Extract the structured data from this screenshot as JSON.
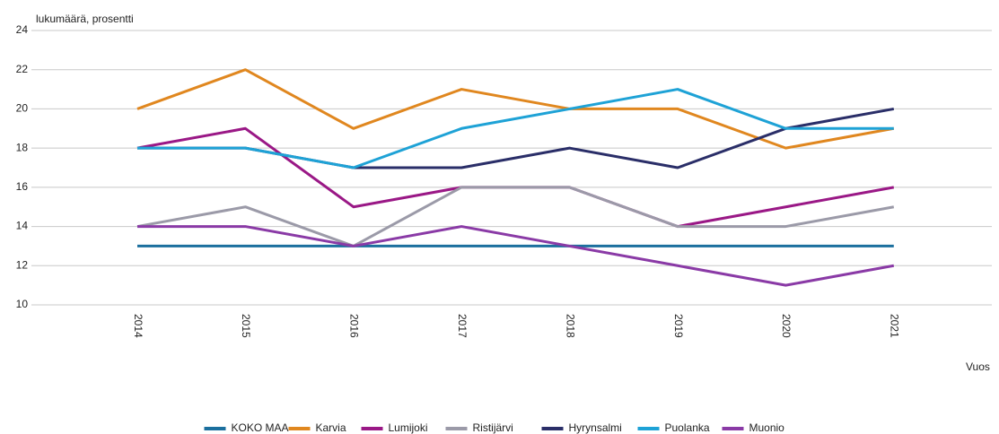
{
  "chart_data": {
    "type": "line",
    "y_axis_label": "lukumäärä, prosentti",
    "x_axis_label": "Vuos",
    "categories": [
      "2014",
      "2015",
      "2016",
      "2017",
      "2018",
      "2019",
      "2020",
      "2021"
    ],
    "series": [
      {
        "name": "KOKO MAA",
        "color": "#1b6f9e",
        "values": [
          13,
          13,
          13,
          13,
          13,
          13,
          13,
          13
        ]
      },
      {
        "name": "Karvia",
        "color": "#e0871f",
        "values": [
          20,
          22,
          19,
          21,
          20,
          20,
          18,
          19
        ]
      },
      {
        "name": "Lumijoki",
        "color": "#9a1886",
        "values": [
          18,
          19,
          15,
          16,
          16,
          14,
          15,
          16
        ]
      },
      {
        "name": "Ristijärvi",
        "color": "#9b9aa8",
        "values": [
          14,
          15,
          13,
          16,
          16,
          14,
          14,
          15
        ]
      },
      {
        "name": "Hyrynsalmi",
        "color": "#2a2e68",
        "values": [
          18,
          18,
          17,
          17,
          18,
          17,
          19,
          20
        ]
      },
      {
        "name": "Puolanka",
        "color": "#1ea2d6",
        "values": [
          18,
          18,
          17,
          19,
          20,
          21,
          19,
          19
        ]
      },
      {
        "name": "Muonio",
        "color": "#8a3aa6",
        "values": [
          14,
          14,
          13,
          14,
          13,
          12,
          11,
          12
        ]
      }
    ],
    "ylim": [
      10,
      24
    ],
    "yticks": [
      10,
      12,
      14,
      16,
      18,
      20,
      22,
      24
    ],
    "grid": true
  }
}
